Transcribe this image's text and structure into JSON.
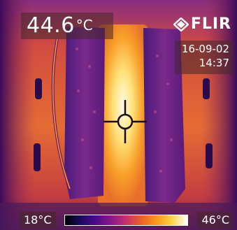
{
  "readout": {
    "value": "44.6",
    "unit": "°C"
  },
  "brand": {
    "name": "FLIR"
  },
  "timestamp": {
    "date": "16-09-02",
    "time": "14:37"
  },
  "scale": {
    "min_label": "18°C",
    "max_label": "46°C"
  },
  "colors": {
    "hot": "#fff6c8",
    "warm": "#f8961a",
    "mid": "#c8306a",
    "cool": "#5a1a8a",
    "cold": "#1a0b2e"
  },
  "icons": {
    "logo": "flir-diamond-icon",
    "target": "crosshair-icon"
  }
}
